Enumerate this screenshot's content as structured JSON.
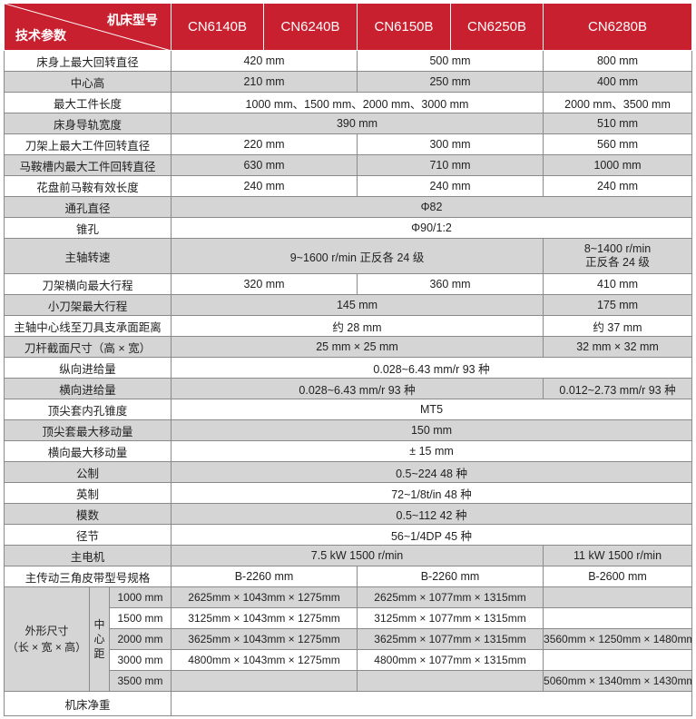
{
  "header": {
    "corner_top": "机床型号",
    "corner_bottom": "技术参数",
    "models": [
      {
        "name": "CN6140B",
        "span": 1
      },
      {
        "name": "CN6240B",
        "span": 1
      },
      {
        "name": "CN6150B",
        "span": 1
      },
      {
        "name": "CN6250B",
        "span": 1
      },
      {
        "name": "CN6280B",
        "span": 1
      }
    ]
  },
  "colors": {
    "header_red": "#c9202f",
    "row_gray": "#d5d5d5",
    "border": "#8a8a8a"
  },
  "rows": [
    {
      "label": "床身上最大回转直径",
      "cells": [
        {
          "v": "420 mm",
          "span": 2
        },
        {
          "v": "500 mm",
          "span": 2
        },
        {
          "v": "800 mm",
          "span": 1
        }
      ]
    },
    {
      "label": "中心高",
      "cells": [
        {
          "v": "210 mm",
          "span": 2
        },
        {
          "v": "250 mm",
          "span": 2
        },
        {
          "v": "400 mm",
          "span": 1
        }
      ]
    },
    {
      "label": "最大工件长度",
      "cells": [
        {
          "v": "1000 mm、1500 mm、2000 mm、3000 mm",
          "span": 4
        },
        {
          "v": "2000 mm、3500 mm",
          "span": 1
        }
      ]
    },
    {
      "label": "床身导轨宽度",
      "cells": [
        {
          "v": "390 mm",
          "span": 4
        },
        {
          "v": "510 mm",
          "span": 1
        }
      ]
    },
    {
      "label": "刀架上最大工件回转直径",
      "cells": [
        {
          "v": "220 mm",
          "span": 2
        },
        {
          "v": "300 mm",
          "span": 2
        },
        {
          "v": "560 mm",
          "span": 1
        }
      ]
    },
    {
      "label": "马鞍槽内最大工件回转直径",
      "cells": [
        {
          "v": "630 mm",
          "span": 2
        },
        {
          "v": "710 mm",
          "span": 2
        },
        {
          "v": "1000 mm",
          "span": 1
        }
      ]
    },
    {
      "label": "花盘前马鞍有效长度",
      "cells": [
        {
          "v": "240 mm",
          "span": 2
        },
        {
          "v": "240 mm",
          "span": 2
        },
        {
          "v": "240 mm",
          "span": 1
        }
      ]
    },
    {
      "label": "通孔直径",
      "cells": [
        {
          "v": "Φ82",
          "span": 5
        }
      ]
    },
    {
      "label": "锥孔",
      "cells": [
        {
          "v": "Φ90/1:2",
          "span": 5
        }
      ]
    },
    {
      "label": "主轴转速",
      "tall": true,
      "cells": [
        {
          "v": "9~1600 r/min  正反各 24 级",
          "span": 4
        },
        {
          "v": "8~1400 r/min",
          "v2": "正反各 24 级",
          "span": 1
        }
      ]
    },
    {
      "label": "刀架横向最大行程",
      "cells": [
        {
          "v": "320 mm",
          "span": 2
        },
        {
          "v": "360 mm",
          "span": 2
        },
        {
          "v": "410 mm",
          "span": 1
        }
      ]
    },
    {
      "label": "小刀架最大行程",
      "cells": [
        {
          "v": "145 mm",
          "span": 4
        },
        {
          "v": "175 mm",
          "span": 1
        }
      ]
    },
    {
      "label": "主轴中心线至刀具支承面距离",
      "cells": [
        {
          "v": "约 28 mm",
          "span": 4
        },
        {
          "v": "约 37 mm",
          "span": 1
        }
      ]
    },
    {
      "label": "刀杆截面尺寸（高 × 宽）",
      "cells": [
        {
          "v": "25 mm × 25 mm",
          "span": 4
        },
        {
          "v": "32 mm × 32 mm",
          "span": 1
        }
      ]
    },
    {
      "label": "纵向进给量",
      "cells": [
        {
          "v": "0.028~6.43 mm/r 93 种",
          "span": 5
        }
      ]
    },
    {
      "label": "横向进给量",
      "cells": [
        {
          "v": "0.028~6.43 mm/r  93 种",
          "span": 4
        },
        {
          "v": "0.012~2.73 mm/r  93 种",
          "span": 1
        }
      ]
    },
    {
      "label": "顶尖套内孔锥度",
      "cells": [
        {
          "v": "MT5",
          "span": 5
        }
      ]
    },
    {
      "label": "顶尖套最大移动量",
      "cells": [
        {
          "v": "150 mm",
          "span": 5
        }
      ]
    },
    {
      "label": "横向最大移动量",
      "cells": [
        {
          "v": "± 15 mm",
          "span": 5
        }
      ]
    },
    {
      "label": "公制",
      "cells": [
        {
          "v": "0.5~224 48 种",
          "span": 5
        }
      ]
    },
    {
      "label": "英制",
      "cells": [
        {
          "v": "72~1/8t/in 48 种",
          "span": 5
        }
      ]
    },
    {
      "label": "模数",
      "cells": [
        {
          "v": "0.5~112 42 种",
          "span": 5
        }
      ]
    },
    {
      "label": "径节",
      "cells": [
        {
          "v": "56~1/4DP 45 种",
          "span": 5
        }
      ]
    },
    {
      "label": "主电机",
      "cells": [
        {
          "v": "7.5 kW  1500 r/min",
          "span": 4
        },
        {
          "v": "11 kW  1500 r/min",
          "span": 1
        }
      ]
    },
    {
      "label": "主传动三角皮带型号规格",
      "cells": [
        {
          "v": "B-2260 mm",
          "span": 2
        },
        {
          "v": "B-2260 mm",
          "span": 2
        },
        {
          "v": "B-2600 mm",
          "span": 1
        }
      ]
    }
  ],
  "dimensions": {
    "label_line1": "外形尺寸",
    "label_line2": "（长 × 宽 × 高）",
    "center_distance_label": "中心距",
    "rows": [
      {
        "center": "1000 mm",
        "cells": [
          "2625mm × 1043mm × 1275mm",
          "2625mm × 1077mm × 1315mm",
          ""
        ]
      },
      {
        "center": "1500 mm",
        "cells": [
          "3125mm × 1043mm × 1275mm",
          "3125mm × 1077mm × 1315mm",
          ""
        ]
      },
      {
        "center": "2000 mm",
        "cells": [
          "3625mm × 1043mm × 1275mm",
          "3625mm × 1077mm × 1315mm",
          "3560mm × 1250mm × 1480mm"
        ]
      },
      {
        "center": "3000 mm",
        "cells": [
          "4800mm × 1043mm × 1275mm",
          "4800mm × 1077mm × 1315mm",
          ""
        ]
      },
      {
        "center": "3500 mm",
        "cells": [
          "",
          "",
          "5060mm × 1340mm × 1430mm"
        ]
      }
    ]
  },
  "net_weight": {
    "label": "机床净重",
    "value": ""
  }
}
